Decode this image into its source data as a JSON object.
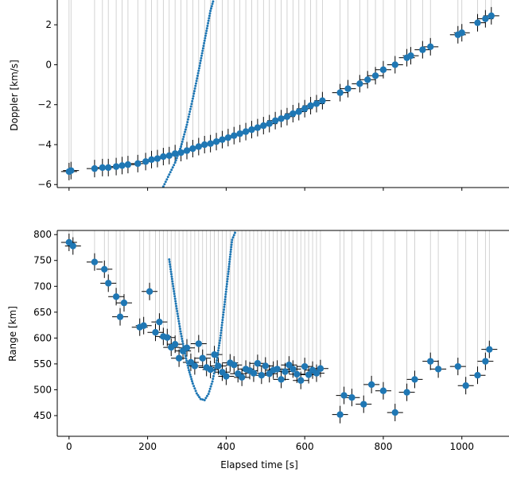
{
  "chart_data": [
    {
      "type": "scatter",
      "title": "",
      "xlabel": "",
      "ylabel": "Doppler [km/s]",
      "xlim": [
        -30,
        1120
      ],
      "ylim": [
        -6.15,
        3.4
      ],
      "yticks": [
        -6,
        -4,
        -2,
        0,
        2
      ],
      "grid": false,
      "colors": {
        "marker": "#1f77b4",
        "errorbar": "#000000",
        "residual_line": "#c8c8c8"
      },
      "measurements": {
        "x": [
          0,
          5,
          65,
          85,
          100,
          120,
          135,
          150,
          175,
          195,
          210,
          225,
          240,
          255,
          270,
          285,
          300,
          315,
          330,
          345,
          360,
          375,
          390,
          405,
          420,
          435,
          450,
          465,
          480,
          495,
          510,
          525,
          540,
          555,
          570,
          585,
          600,
          615,
          630,
          645,
          690,
          710,
          740,
          760,
          780,
          800,
          830,
          860,
          870,
          900,
          920,
          990,
          1000,
          1040,
          1060,
          1075
        ],
        "y": [
          -5.35,
          -5.3,
          -5.2,
          -5.15,
          -5.15,
          -5.1,
          -5.05,
          -5.0,
          -4.95,
          -4.85,
          -4.75,
          -4.7,
          -4.6,
          -4.55,
          -4.45,
          -4.4,
          -4.3,
          -4.2,
          -4.1,
          -4.0,
          -3.95,
          -3.85,
          -3.75,
          -3.65,
          -3.55,
          -3.45,
          -3.35,
          -3.25,
          -3.15,
          -3.05,
          -2.95,
          -2.8,
          -2.7,
          -2.6,
          -2.45,
          -2.35,
          -2.2,
          -2.05,
          -1.95,
          -1.8,
          -1.4,
          -1.2,
          -0.95,
          -0.75,
          -0.55,
          -0.25,
          0.0,
          0.35,
          0.45,
          0.75,
          0.9,
          1.5,
          1.6,
          2.1,
          2.3,
          2.45
        ]
      },
      "model_track": {
        "x": [
          240,
          255,
          270,
          285,
          300,
          315,
          330,
          345,
          360,
          370
        ],
        "y": [
          -6.1,
          -5.5,
          -4.9,
          -4.1,
          -3.0,
          -1.7,
          -0.3,
          1.2,
          2.7,
          3.4
        ]
      }
    },
    {
      "type": "scatter",
      "title": "",
      "xlabel": "Elapsed time [s]",
      "ylabel": "Range [km]",
      "xlim": [
        -30,
        1120
      ],
      "ylim": [
        410,
        808
      ],
      "xticks": [
        0,
        200,
        400,
        600,
        800,
        1000
      ],
      "yticks": [
        450,
        500,
        550,
        600,
        650,
        700,
        750,
        800
      ],
      "grid": false,
      "colors": {
        "marker": "#1f77b4",
        "errorbar": "#000000",
        "residual_line": "#c8c8c8"
      },
      "measurements": {
        "x": [
          0,
          10,
          65,
          90,
          100,
          120,
          130,
          140,
          180,
          190,
          205,
          220,
          230,
          240,
          250,
          260,
          270,
          280,
          290,
          300,
          310,
          320,
          330,
          340,
          350,
          360,
          370,
          380,
          390,
          400,
          410,
          420,
          430,
          440,
          450,
          460,
          470,
          480,
          490,
          500,
          510,
          520,
          530,
          540,
          550,
          560,
          570,
          580,
          590,
          600,
          610,
          620,
          630,
          640,
          690,
          700,
          720,
          750,
          770,
          800,
          830,
          860,
          880,
          920,
          940,
          990,
          1010,
          1040,
          1060,
          1070
        ],
        "y": [
          785,
          778,
          747,
          733,
          706,
          680,
          641,
          668,
          621,
          624,
          690,
          611,
          631,
          603,
          601,
          582,
          588,
          561,
          575,
          581,
          553,
          546,
          589,
          561,
          543,
          539,
          568,
          546,
          534,
          526,
          552,
          548,
          531,
          524,
          540,
          537,
          532,
          551,
          528,
          546,
          531,
          538,
          540,
          520,
          535,
          548,
          540,
          530,
          518,
          545,
          529,
          538,
          532,
          541,
          452,
          489,
          485,
          472,
          510,
          498,
          456,
          495,
          520,
          555,
          540,
          545,
          508,
          528,
          555,
          578
        ]
      },
      "model_track": {
        "x": [
          255,
          265,
          275,
          285,
          295,
          305,
          315,
          325,
          335,
          345,
          355,
          365,
          375,
          385,
          395,
          405,
          415,
          425
        ],
        "y": [
          752,
          700,
          652,
          608,
          570,
          538,
          512,
          493,
          482,
          480,
          492,
          516,
          552,
          600,
          660,
          724,
          790,
          808
        ]
      }
    }
  ]
}
